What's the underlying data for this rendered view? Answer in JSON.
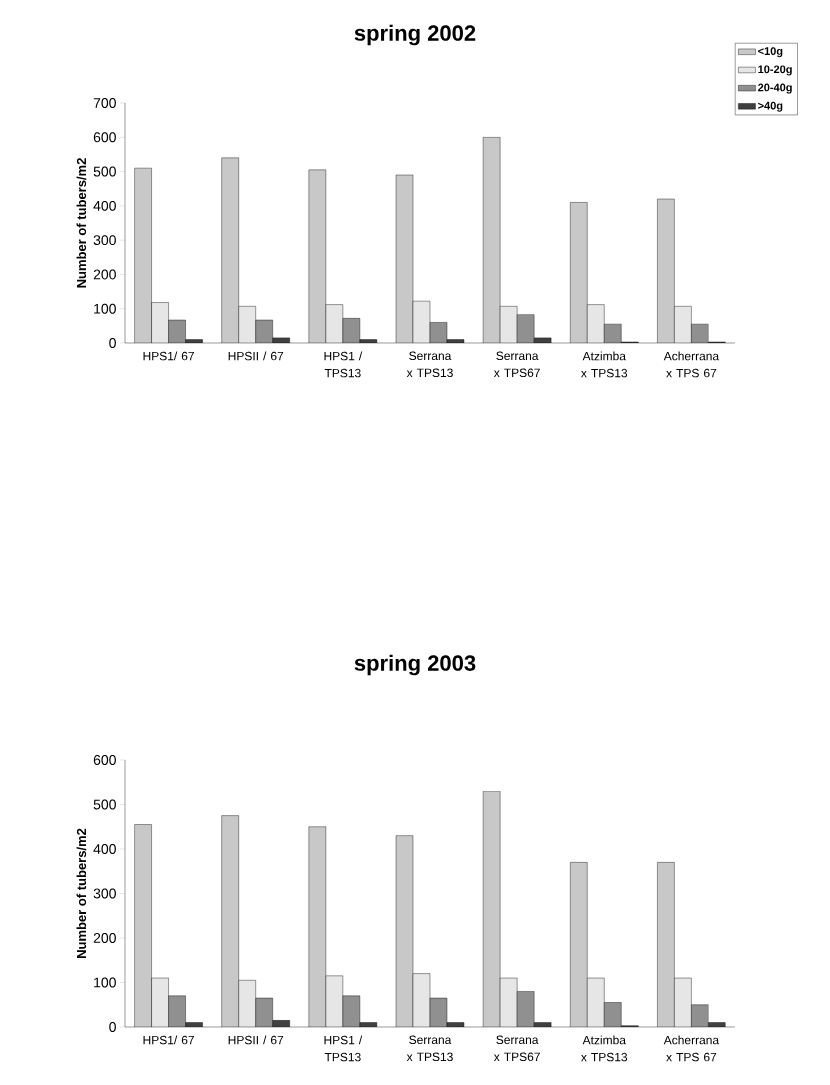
{
  "chart_data": [
    {
      "type": "bar",
      "title": "spring 2002",
      "ylabel": "Number of tubers/m2",
      "categories": [
        "HPS1/ 67",
        "HPSII / 67",
        "HPS1 / TPS13",
        "Serrana x TPS13",
        "Serrana x TPS67",
        "Atzimba x TPS13",
        "Acherrana x TPS 67"
      ],
      "series": [
        {
          "name": "<10g",
          "color": "#c8c8c8",
          "values": [
            510,
            540,
            505,
            490,
            600,
            410,
            420
          ]
        },
        {
          "name": "10-20g",
          "color": "#e6e6e6",
          "values": [
            118,
            107,
            112,
            122,
            107,
            112,
            107
          ]
        },
        {
          "name": "20-40g",
          "color": "#909090",
          "values": [
            67,
            67,
            72,
            60,
            83,
            55,
            55
          ]
        },
        {
          "name": ">40g",
          "color": "#404040",
          "values": [
            10,
            15,
            10,
            10,
            15,
            3,
            3
          ]
        }
      ],
      "ylim": [
        0,
        700
      ],
      "yticks": [
        0,
        100,
        200,
        300,
        400,
        500,
        600,
        700
      ],
      "legend": "top right"
    },
    {
      "type": "bar",
      "title": "spring 2003",
      "ylabel": "Number of tubers/m2",
      "categories": [
        "HPS1/ 67",
        "HPSII / 67",
        "HPS1 / TPS13",
        "Serrana x TPS13",
        "Serrana x TPS67",
        "Atzimba x TPS13",
        "Acherrana x TPS 67"
      ],
      "series": [
        {
          "color": "#c8c8c8",
          "values": [
            455,
            475,
            450,
            430,
            530,
            370,
            370
          ]
        },
        {
          "color": "#e6e6e6",
          "values": [
            110,
            105,
            115,
            120,
            110,
            110,
            110
          ]
        },
        {
          "color": "#909090",
          "values": [
            70,
            65,
            70,
            65,
            80,
            55,
            50
          ]
        },
        {
          "color": "#404040",
          "values": [
            10,
            15,
            10,
            10,
            10,
            3,
            10
          ]
        }
      ],
      "ylim": [
        0,
        600
      ],
      "yticks": [
        0,
        100,
        200,
        300,
        400,
        500,
        600
      ]
    }
  ]
}
